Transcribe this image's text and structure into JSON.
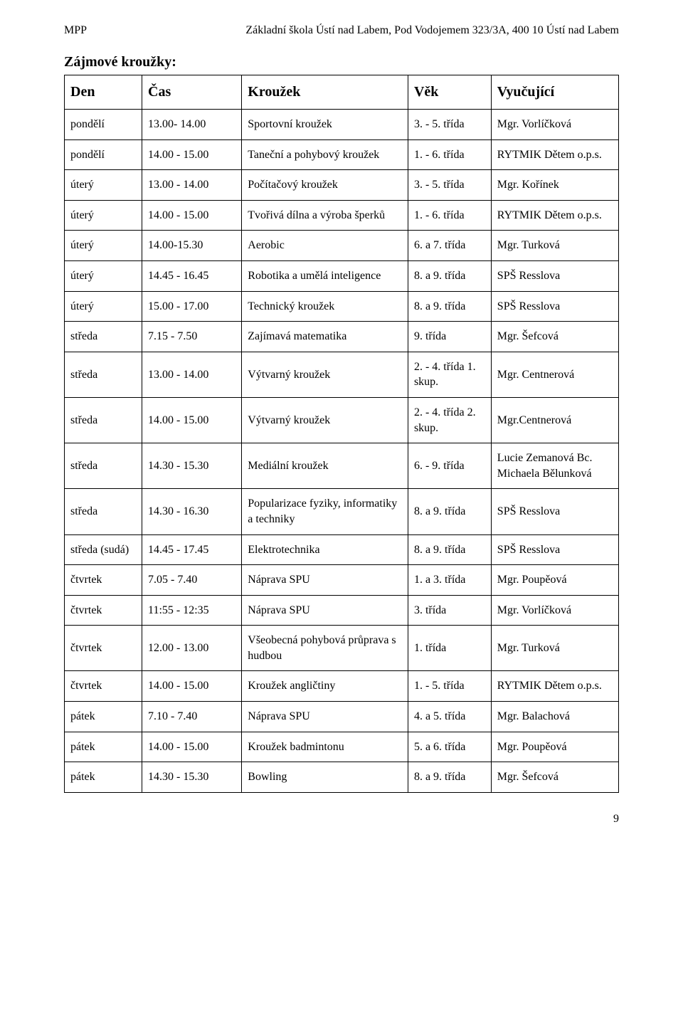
{
  "header": {
    "left": "MPP",
    "right": "Základní škola Ústí nad Labem, Pod Vodojemem 323/3A, 400 10 Ústí nad Labem"
  },
  "section_title": "Zájmové kroužky:",
  "columns": [
    "Den",
    "Čas",
    "Kroužek",
    "Věk",
    "Vyučující"
  ],
  "rows": [
    [
      "pondělí",
      "13.00- 14.00",
      "Sportovní kroužek",
      "3. - 5. třída",
      "Mgr. Vorlíčková"
    ],
    [
      "pondělí",
      "14.00 - 15.00",
      "Taneční a pohybový kroužek",
      "1. - 6. třída",
      "RYTMIK Dětem o.p.s."
    ],
    [
      "úterý",
      "13.00 - 14.00",
      "Počítačový kroužek",
      "3. - 5. třída",
      "Mgr. Kořínek"
    ],
    [
      "úterý",
      "14.00 - 15.00",
      "Tvořivá dílna a výroba šperků",
      "1. - 6. třída",
      "RYTMIK Dětem o.p.s."
    ],
    [
      "úterý",
      "14.00-15.30",
      "Aerobic",
      "6. a 7. třída",
      "Mgr. Turková"
    ],
    [
      "úterý",
      "14.45 - 16.45",
      "Robotika a umělá inteligence",
      "8. a 9. třída",
      "SPŠ Resslova"
    ],
    [
      "úterý",
      "15.00 - 17.00",
      "Technický kroužek",
      "8. a 9. třída",
      "SPŠ Resslova"
    ],
    [
      "středa",
      "7.15 - 7.50",
      "Zajímavá matematika",
      "9. třída",
      "Mgr. Šefcová"
    ],
    [
      "středa",
      "13.00 - 14.00",
      "Výtvarný kroužek",
      "2. - 4. třída 1. skup.",
      "Mgr. Centnerová"
    ],
    [
      "středa",
      "14.00 - 15.00",
      "Výtvarný kroužek",
      "2. - 4. třída 2. skup.",
      "Mgr.Centnerová"
    ],
    [
      "středa",
      "14.30 - 15.30",
      "Mediální kroužek",
      "6. - 9. třída",
      "Lucie Zemanová Bc. Michaela Bělunková"
    ],
    [
      "středa",
      "14.30 - 16.30",
      "Popularizace fyziky, informatiky a techniky",
      "8. a 9. třída",
      "SPŠ Resslova"
    ],
    [
      "středa (sudá)",
      "14.45 - 17.45",
      "Elektrotechnika",
      "8. a 9. třída",
      "SPŠ Resslova"
    ],
    [
      "čtvrtek",
      "7.05 - 7.40",
      "Náprava SPU",
      "1. a 3. třída",
      "Mgr. Poupěová"
    ],
    [
      "čtvrtek",
      "11:55 - 12:35",
      "Náprava SPU",
      "3. třída",
      "Mgr. Vorlíčková"
    ],
    [
      "čtvrtek",
      "12.00 - 13.00",
      "Všeobecná pohybová průprava s hudbou",
      "1. třída",
      "Mgr. Turková"
    ],
    [
      "čtvrtek",
      "14.00 - 15.00",
      "Kroužek angličtiny",
      "1. - 5. třída",
      "RYTMIK Dětem o.p.s."
    ],
    [
      "pátek",
      "7.10 - 7.40",
      "Náprava SPU",
      "4. a 5. třída",
      "Mgr. Balachová"
    ],
    [
      "pátek",
      "14.00 - 15.00",
      "Kroužek badmintonu",
      "5. a 6. třída",
      "Mgr. Poupěová"
    ],
    [
      "pátek",
      "14.30 - 15.30",
      "Bowling",
      "8. a 9. třída",
      "Mgr. Šefcová"
    ]
  ],
  "page_number": "9"
}
